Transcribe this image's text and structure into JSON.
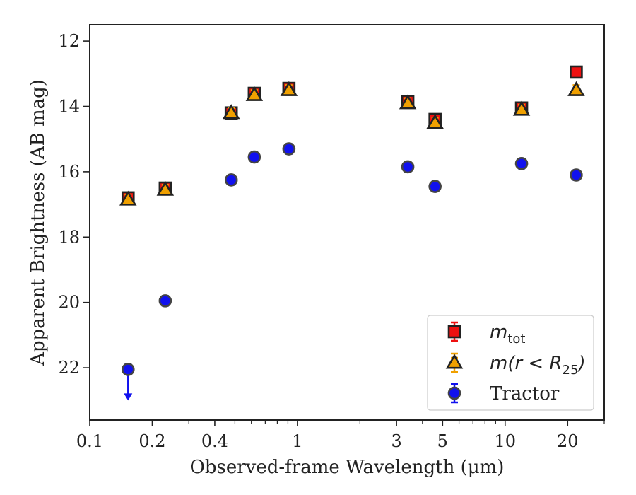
{
  "chart_data": {
    "type": "scatter",
    "title": "",
    "xlabel": "Observed-frame Wavelength (μm)",
    "ylabel": "Apparent Brightness (AB mag)",
    "xscale": "log",
    "xlim": [
      0.1,
      30
    ],
    "ylim": [
      23.6,
      11.5
    ],
    "y_inverted": true,
    "xticks": [
      0.1,
      0.2,
      0.4,
      1,
      3,
      5,
      10,
      20
    ],
    "xtick_labels": [
      "0.1",
      "0.2",
      "0.4",
      "1",
      "3",
      "5",
      "10",
      "20"
    ],
    "yticks": [
      12,
      14,
      16,
      18,
      20,
      22
    ],
    "ytick_labels": [
      "12",
      "14",
      "16",
      "18",
      "20",
      "22"
    ],
    "grid": false,
    "legend_position": "lower-right",
    "series": [
      {
        "name": "m_tot",
        "marker": "square",
        "color": "#ee1111",
        "x": [
          0.153,
          0.231,
          0.48,
          0.62,
          0.91,
          3.4,
          4.6,
          12.0,
          22.0
        ],
        "y": [
          16.8,
          16.5,
          14.2,
          13.6,
          13.45,
          13.85,
          14.4,
          14.05,
          12.95
        ]
      },
      {
        "name": "m(r<R25)",
        "marker": "triangle",
        "color": "#f0a000",
        "x": [
          0.153,
          0.231,
          0.48,
          0.62,
          0.91,
          3.4,
          4.6,
          12.0,
          22.0
        ],
        "y": [
          16.85,
          16.55,
          14.2,
          13.65,
          13.5,
          13.9,
          14.5,
          14.1,
          13.5
        ]
      },
      {
        "name": "Tractor",
        "marker": "circle",
        "color": "#1111ee",
        "x": [
          0.153,
          0.231,
          0.48,
          0.62,
          0.91,
          3.4,
          4.6,
          12.0,
          22.0
        ],
        "y": [
          22.05,
          19.95,
          16.25,
          15.55,
          15.3,
          15.85,
          16.45,
          15.75,
          16.1
        ],
        "upper_limit": [
          true,
          false,
          false,
          false,
          false,
          false,
          false,
          false,
          false
        ]
      }
    ],
    "legend": [
      {
        "label_base": "m",
        "label_sub": "tot"
      },
      {
        "label_base": "m(r < R",
        "label_sub": "25",
        "label_end": ")"
      },
      {
        "label_base": "Tractor",
        "label_sub": ""
      }
    ]
  }
}
